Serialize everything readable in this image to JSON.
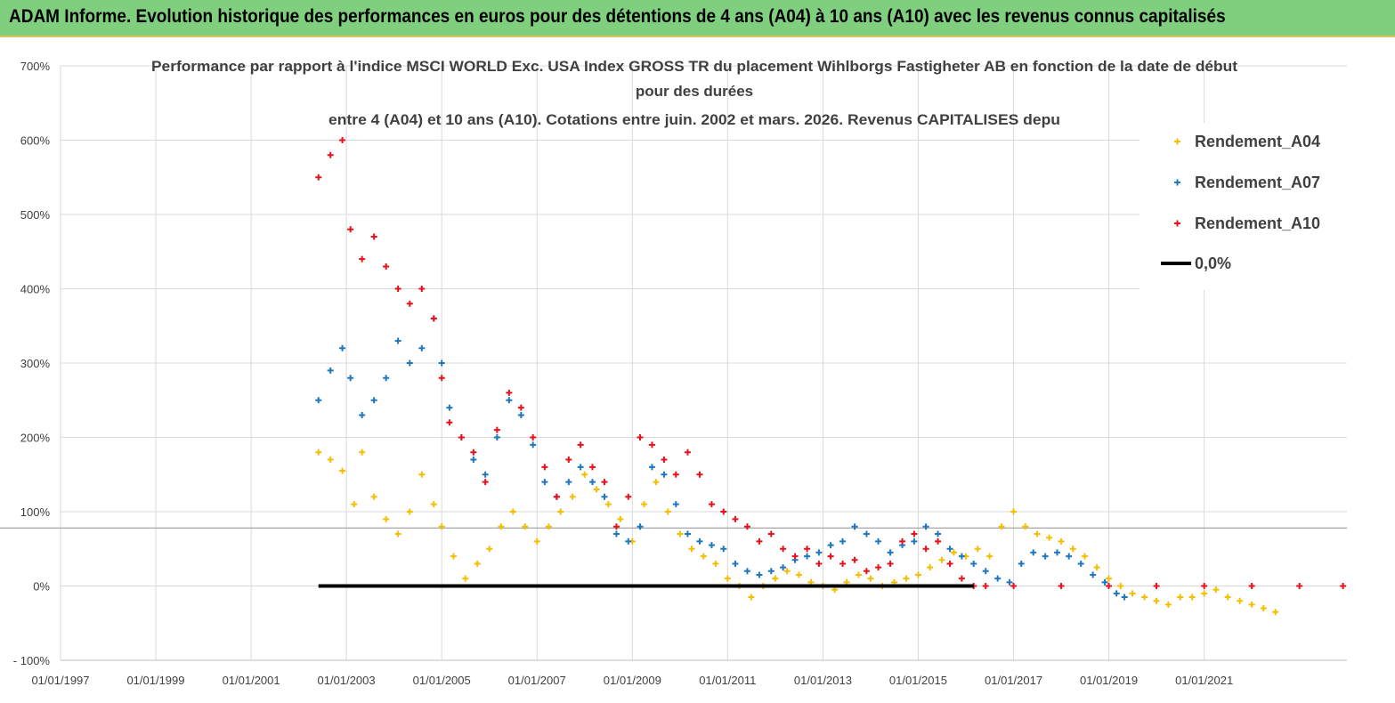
{
  "page": {
    "banner_title": "ADAM Informe. Evolution historique des performances en euros pour des détentions de 4 ans (A04) à 10 ans (A10) avec les revenus connus capitalisés",
    "banner_color": "#7fcf7f"
  },
  "chart_data": {
    "type": "scatter",
    "title_lines": [
      "Performance par rapport à l'indice MSCI WORLD Exc. USA Index GROSS TR  du placement Wihlborgs Fastigheter AB en fonction de la date de début",
      "pour des durées",
      "entre 4 (A04) et 10 ans (A10). Cotations entre juin. 2002 et mars. 2026. Revenus CAPITALISES depu"
    ],
    "xlabel": "",
    "ylabel": "",
    "x_tick_labels": [
      "01/01/1997",
      "01/01/1999",
      "01/01/2001",
      "01/01/2003",
      "01/01/2005",
      "01/01/2007",
      "01/01/2009",
      "01/01/2011",
      "01/01/2013",
      "01/01/2015",
      "01/01/2017",
      "01/01/2019",
      "01/01/2021"
    ],
    "x_range": [
      "1997-01-01",
      "2023-12-31"
    ],
    "y_tick_labels": [
      "700%",
      "600%",
      "500%",
      "400%",
      "300%",
      "200%",
      "100%",
      "0%",
      "- 100%"
    ],
    "ylim": [
      -100,
      700
    ],
    "grid": true,
    "legend_position": "top-right",
    "series": [
      {
        "name": "Rendement_A04",
        "color": "#f5be00",
        "marker": "plus",
        "points": [
          [
            "2002-06-01",
            180
          ],
          [
            "2002-09-01",
            170
          ],
          [
            "2002-12-01",
            155
          ],
          [
            "2003-03-01",
            110
          ],
          [
            "2003-05-01",
            180
          ],
          [
            "2003-08-01",
            120
          ],
          [
            "2003-11-01",
            90
          ],
          [
            "2004-02-01",
            70
          ],
          [
            "2004-05-01",
            100
          ],
          [
            "2004-08-01",
            150
          ],
          [
            "2004-11-01",
            110
          ],
          [
            "2005-01-01",
            80
          ],
          [
            "2005-04-01",
            40
          ],
          [
            "2005-07-01",
            10
          ],
          [
            "2005-10-01",
            30
          ],
          [
            "2006-01-01",
            50
          ],
          [
            "2006-04-01",
            80
          ],
          [
            "2006-07-01",
            100
          ],
          [
            "2006-10-01",
            80
          ],
          [
            "2007-01-01",
            60
          ],
          [
            "2007-04-01",
            80
          ],
          [
            "2007-07-01",
            100
          ],
          [
            "2007-10-01",
            120
          ],
          [
            "2008-01-01",
            150
          ],
          [
            "2008-04-01",
            130
          ],
          [
            "2008-07-01",
            110
          ],
          [
            "2008-10-01",
            90
          ],
          [
            "2009-01-01",
            60
          ],
          [
            "2009-04-01",
            110
          ],
          [
            "2009-07-01",
            140
          ],
          [
            "2009-10-01",
            100
          ],
          [
            "2010-01-01",
            70
          ],
          [
            "2010-04-01",
            50
          ],
          [
            "2010-07-01",
            40
          ],
          [
            "2010-10-01",
            30
          ],
          [
            "2011-01-01",
            10
          ],
          [
            "2011-04-01",
            0
          ],
          [
            "2011-07-01",
            -15
          ],
          [
            "2011-10-01",
            0
          ],
          [
            "2012-01-01",
            10
          ],
          [
            "2012-04-01",
            20
          ],
          [
            "2012-07-01",
            15
          ],
          [
            "2012-10-01",
            5
          ],
          [
            "2013-01-01",
            0
          ],
          [
            "2013-04-01",
            -5
          ],
          [
            "2013-07-01",
            5
          ],
          [
            "2013-10-01",
            15
          ],
          [
            "2014-01-01",
            10
          ],
          [
            "2014-04-01",
            0
          ],
          [
            "2014-07-01",
            5
          ],
          [
            "2014-10-01",
            10
          ],
          [
            "2015-01-01",
            15
          ],
          [
            "2015-04-01",
            25
          ],
          [
            "2015-07-01",
            35
          ],
          [
            "2015-10-01",
            45
          ],
          [
            "2016-01-01",
            40
          ],
          [
            "2016-04-01",
            50
          ],
          [
            "2016-07-01",
            40
          ],
          [
            "2016-10-01",
            80
          ],
          [
            "2017-01-01",
            100
          ],
          [
            "2017-04-01",
            80
          ],
          [
            "2017-07-01",
            70
          ],
          [
            "2017-10-01",
            65
          ],
          [
            "2018-01-01",
            60
          ],
          [
            "2018-04-01",
            50
          ],
          [
            "2018-07-01",
            40
          ],
          [
            "2018-10-01",
            25
          ],
          [
            "2019-01-01",
            10
          ],
          [
            "2019-04-01",
            0
          ],
          [
            "2019-07-01",
            -10
          ],
          [
            "2019-10-01",
            -15
          ],
          [
            "2020-01-01",
            -20
          ],
          [
            "2020-04-01",
            -25
          ],
          [
            "2020-07-01",
            -15
          ],
          [
            "2020-10-01",
            -15
          ],
          [
            "2021-01-01",
            -10
          ],
          [
            "2021-04-01",
            -5
          ],
          [
            "2021-07-01",
            -15
          ],
          [
            "2021-10-01",
            -20
          ],
          [
            "2022-01-01",
            -25
          ],
          [
            "2022-04-01",
            -30
          ],
          [
            "2022-07-01",
            -35
          ]
        ]
      },
      {
        "name": "Rendement_A07",
        "color": "#1f77c0",
        "marker": "plus",
        "points": [
          [
            "2002-06-01",
            250
          ],
          [
            "2002-09-01",
            290
          ],
          [
            "2002-12-01",
            320
          ],
          [
            "2003-02-01",
            280
          ],
          [
            "2003-05-01",
            230
          ],
          [
            "2003-08-01",
            250
          ],
          [
            "2003-11-01",
            280
          ],
          [
            "2004-02-01",
            330
          ],
          [
            "2004-05-01",
            300
          ],
          [
            "2004-08-01",
            320
          ],
          [
            "2004-11-01",
            360
          ],
          [
            "2005-01-01",
            300
          ],
          [
            "2005-03-01",
            240
          ],
          [
            "2005-06-01",
            200
          ],
          [
            "2005-09-01",
            170
          ],
          [
            "2005-12-01",
            150
          ],
          [
            "2006-03-01",
            200
          ],
          [
            "2006-06-01",
            250
          ],
          [
            "2006-09-01",
            230
          ],
          [
            "2006-12-01",
            190
          ],
          [
            "2007-03-01",
            140
          ],
          [
            "2007-06-01",
            120
          ],
          [
            "2007-09-01",
            140
          ],
          [
            "2007-12-01",
            160
          ],
          [
            "2008-03-01",
            140
          ],
          [
            "2008-06-01",
            120
          ],
          [
            "2008-09-01",
            70
          ],
          [
            "2008-12-01",
            60
          ],
          [
            "2009-03-01",
            80
          ],
          [
            "2009-06-01",
            160
          ],
          [
            "2009-09-01",
            150
          ],
          [
            "2009-12-01",
            110
          ],
          [
            "2010-03-01",
            70
          ],
          [
            "2010-06-01",
            60
          ],
          [
            "2010-09-01",
            55
          ],
          [
            "2010-12-01",
            50
          ],
          [
            "2011-03-01",
            30
          ],
          [
            "2011-06-01",
            20
          ],
          [
            "2011-09-01",
            15
          ],
          [
            "2011-12-01",
            20
          ],
          [
            "2012-03-01",
            25
          ],
          [
            "2012-06-01",
            35
          ],
          [
            "2012-09-01",
            40
          ],
          [
            "2012-12-01",
            45
          ],
          [
            "2013-03-01",
            55
          ],
          [
            "2013-06-01",
            60
          ],
          [
            "2013-09-01",
            80
          ],
          [
            "2013-12-01",
            70
          ],
          [
            "2014-03-01",
            60
          ],
          [
            "2014-06-01",
            45
          ],
          [
            "2014-09-01",
            55
          ],
          [
            "2014-12-01",
            60
          ],
          [
            "2015-03-01",
            80
          ],
          [
            "2015-06-01",
            70
          ],
          [
            "2015-09-01",
            50
          ],
          [
            "2015-12-01",
            40
          ],
          [
            "2016-03-01",
            30
          ],
          [
            "2016-06-01",
            20
          ],
          [
            "2016-09-01",
            10
          ],
          [
            "2016-12-01",
            5
          ],
          [
            "2017-03-01",
            30
          ],
          [
            "2017-06-01",
            45
          ],
          [
            "2017-09-01",
            40
          ],
          [
            "2017-12-01",
            45
          ],
          [
            "2018-03-01",
            40
          ],
          [
            "2018-06-01",
            30
          ],
          [
            "2018-09-01",
            15
          ],
          [
            "2018-12-01",
            5
          ],
          [
            "2019-03-01",
            -10
          ],
          [
            "2019-05-01",
            -15
          ]
        ]
      },
      {
        "name": "Rendement_A10",
        "color": "#e8101c",
        "marker": "plus",
        "points": [
          [
            "2002-06-01",
            550
          ],
          [
            "2002-09-01",
            580
          ],
          [
            "2002-12-01",
            600
          ],
          [
            "2003-02-01",
            480
          ],
          [
            "2003-05-01",
            440
          ],
          [
            "2003-08-01",
            470
          ],
          [
            "2003-11-01",
            430
          ],
          [
            "2004-02-01",
            400
          ],
          [
            "2004-05-01",
            380
          ],
          [
            "2004-08-01",
            400
          ],
          [
            "2004-11-01",
            360
          ],
          [
            "2005-01-01",
            280
          ],
          [
            "2005-03-01",
            220
          ],
          [
            "2005-06-01",
            200
          ],
          [
            "2005-09-01",
            180
          ],
          [
            "2005-12-01",
            140
          ],
          [
            "2006-03-01",
            210
          ],
          [
            "2006-06-01",
            260
          ],
          [
            "2006-09-01",
            240
          ],
          [
            "2006-12-01",
            200
          ],
          [
            "2007-03-01",
            160
          ],
          [
            "2007-06-01",
            120
          ],
          [
            "2007-09-01",
            170
          ],
          [
            "2007-12-01",
            190
          ],
          [
            "2008-03-01",
            160
          ],
          [
            "2008-06-01",
            140
          ],
          [
            "2008-09-01",
            80
          ],
          [
            "2008-12-01",
            120
          ],
          [
            "2009-03-01",
            200
          ],
          [
            "2009-06-01",
            190
          ],
          [
            "2009-09-01",
            170
          ],
          [
            "2009-12-01",
            150
          ],
          [
            "2010-03-01",
            180
          ],
          [
            "2010-06-01",
            150
          ],
          [
            "2010-09-01",
            110
          ],
          [
            "2010-12-01",
            100
          ],
          [
            "2011-03-01",
            90
          ],
          [
            "2011-06-01",
            80
          ],
          [
            "2011-09-01",
            60
          ],
          [
            "2011-12-01",
            70
          ],
          [
            "2012-03-01",
            50
          ],
          [
            "2012-06-01",
            40
          ],
          [
            "2012-09-01",
            50
          ],
          [
            "2012-12-01",
            30
          ],
          [
            "2013-03-01",
            40
          ],
          [
            "2013-06-01",
            30
          ],
          [
            "2013-09-01",
            35
          ],
          [
            "2013-12-01",
            20
          ],
          [
            "2014-03-01",
            25
          ],
          [
            "2014-06-01",
            30
          ],
          [
            "2014-09-01",
            60
          ],
          [
            "2014-12-01",
            70
          ],
          [
            "2015-03-01",
            50
          ],
          [
            "2015-06-01",
            60
          ],
          [
            "2015-09-01",
            30
          ],
          [
            "2015-12-01",
            10
          ],
          [
            "2016-03-01",
            0
          ],
          [
            "2016-06-01",
            0
          ],
          [
            "2017-01-01",
            0
          ],
          [
            "2018-01-01",
            0
          ],
          [
            "2019-01-01",
            0
          ],
          [
            "2020-01-01",
            0
          ],
          [
            "2021-01-01",
            0
          ],
          [
            "2022-01-01",
            0
          ],
          [
            "2023-01-01",
            0
          ],
          [
            "2023-12-01",
            0
          ]
        ]
      },
      {
        "name": "0,0%",
        "color": "#000000",
        "marker": "line",
        "points": [
          [
            "2002-06-01",
            0
          ],
          [
            "2016-03-01",
            0
          ]
        ]
      }
    ],
    "reference_line_y": 78
  }
}
